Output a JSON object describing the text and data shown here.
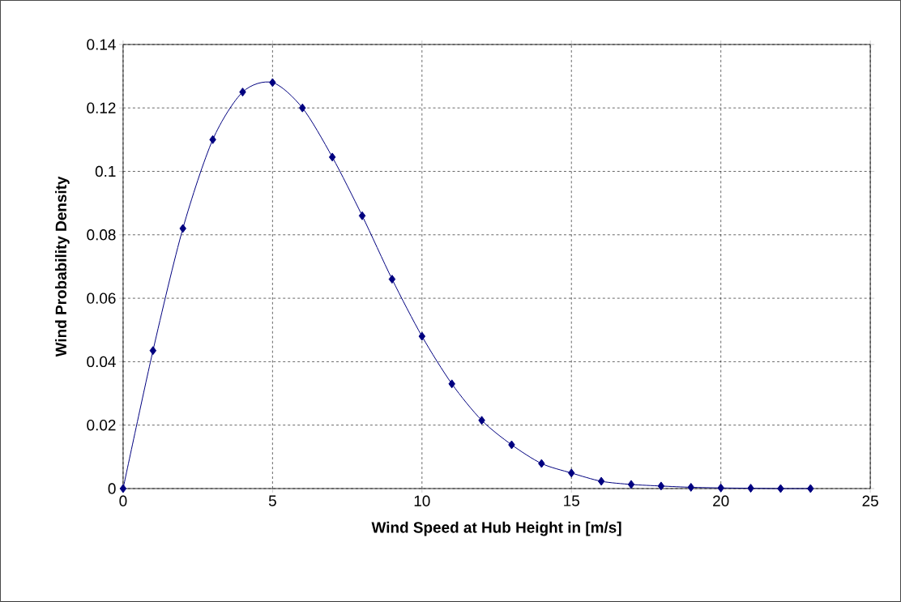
{
  "chart_data": {
    "type": "line",
    "xlabel": "Wind Speed at Hub Height in [m/s]",
    "ylabel": "Wind Probability Density",
    "x": [
      0,
      1,
      2,
      3,
      4,
      5,
      6,
      7,
      8,
      9,
      10,
      11,
      12,
      13,
      14,
      15,
      16,
      17,
      18,
      19,
      20,
      21,
      22,
      23
    ],
    "series": [
      {
        "color": "#000080",
        "values": [
          0,
          0.0435,
          0.082,
          0.11,
          0.125,
          0.128,
          0.12,
          0.1045,
          0.086,
          0.066,
          0.048,
          0.033,
          0.0215,
          0.0138,
          0.0079,
          0.0049,
          0.0023,
          0.0013,
          0.0008,
          0.0004,
          0.0002,
          0.0001,
          0,
          0
        ]
      }
    ],
    "xlim": [
      0,
      25
    ],
    "ylim": [
      0,
      0.14
    ],
    "xticks": [
      0,
      5,
      10,
      15,
      20,
      25
    ],
    "yticks": [
      0,
      0.02,
      0.04,
      0.06,
      0.08,
      0.1,
      0.12,
      0.14
    ],
    "grid": true,
    "marker": "diamond"
  }
}
